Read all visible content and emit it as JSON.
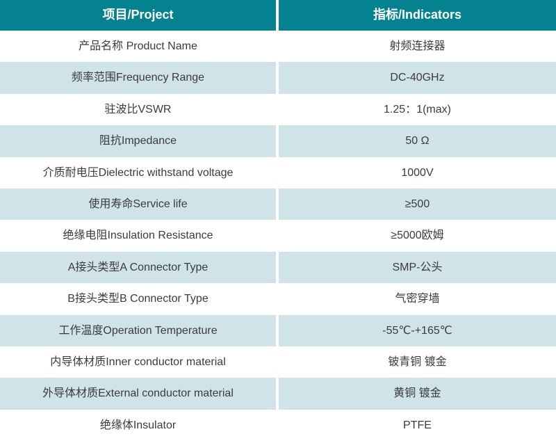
{
  "table": {
    "name": "rf-connector-spec-table",
    "headers": {
      "project": "项目/Project",
      "indicators": "指标/Indicators"
    },
    "rows": [
      {
        "project": "产品名称 Product Name",
        "indicator": "射频连接器"
      },
      {
        "project": "频率范围Frequency Range",
        "indicator": "DC-40GHz"
      },
      {
        "project": "驻波比VSWR",
        "indicator": "1.25：1(max)"
      },
      {
        "project": "阻抗Impedance",
        "indicator": "50 Ω"
      },
      {
        "project": "介质耐电压Dielectric withstand voltage",
        "indicator": "1000V"
      },
      {
        "project": "使用寿命Service life",
        "indicator": "≥500"
      },
      {
        "project": "绝缘电阻Insulation Resistance",
        "indicator": "≥5000欧姆"
      },
      {
        "project": "A接头类型A Connector Type",
        "indicator": "SMP-公头"
      },
      {
        "project": "B接头类型B Connector Type",
        "indicator": "气密穿墙"
      },
      {
        "project": "工作温度Operation Temperature",
        "indicator": "-55℃-+165℃"
      },
      {
        "project": "内导体材质Inner conductor material",
        "indicator": "铍青铜 镀金"
      },
      {
        "project": "外导体材质External conductor material",
        "indicator": "黄铜 镀金"
      },
      {
        "project": "绝缘体Insulator",
        "indicator": "PTFE"
      }
    ],
    "colors": {
      "header_bg": "#04828f",
      "header_text": "#ffffff",
      "row_bg": "#ffffff",
      "row_alt_bg": "#cfe3e8",
      "body_text": "#3b3b3b",
      "divider": "#ffffff"
    }
  }
}
